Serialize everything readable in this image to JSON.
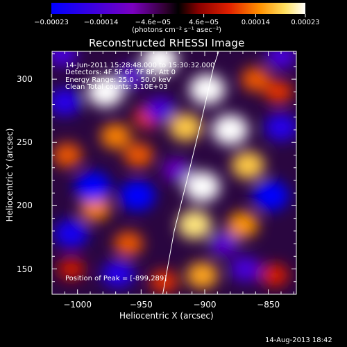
{
  "chart_data": {
    "type": "heatmap",
    "title": "Reconstructed RHESSI Image",
    "xlabel": "Heliocentric X (arcsec)",
    "ylabel": "Heliocentric Y (arcsec)",
    "xlim": [
      -1020,
      -828
    ],
    "ylim": [
      130,
      322
    ],
    "x_ticks": [
      -1000,
      -950,
      -900,
      -850
    ],
    "y_ticks": [
      150,
      200,
      250,
      300
    ],
    "x_tick_labels": [
      "−1000",
      "−950",
      "−900",
      "−850"
    ],
    "y_tick_labels": [
      "150",
      "200",
      "250",
      "300"
    ],
    "colorbar": {
      "range": [
        -0.00023,
        0.00023
      ],
      "ticks": [
        -0.00023,
        -0.00014,
        -4.6e-05,
        4.6e-05,
        0.00014,
        0.00023
      ],
      "tick_labels": [
        "−0.00023",
        "−0.00014",
        "−4.6e−05",
        "4.6e−05",
        "0.00014",
        "0.00023"
      ],
      "units": "(photons cm⁻² s⁻¹ asec⁻²)"
    },
    "annotations": {
      "time": "14-Jun-2011 15:28:48.000 to 15:30:32.000",
      "detectors": "Detectors: 4F 5F 6F 7F 8F, Att 0",
      "energy": "Energy Range: 25.0 - 50.0 keV",
      "method": "Clean    Total counts: 3.10E+03",
      "peak": "Position of Peak = [-899,289]"
    },
    "peak": [
      -899,
      289
    ],
    "limb": [
      [
        -933,
        130
      ],
      [
        -924,
        180
      ],
      [
        -914,
        220
      ],
      [
        -902,
        270
      ],
      [
        -893,
        310
      ],
      [
        -889,
        322
      ]
    ],
    "blobs": [
      {
        "x": -978,
        "y": 290,
        "value": 0.00023
      },
      {
        "x": -970,
        "y": 255,
        "value": 0.00014
      },
      {
        "x": -935,
        "y": 315,
        "value": 0.00023
      },
      {
        "x": -898,
        "y": 292,
        "value": 0.00023
      },
      {
        "x": -915,
        "y": 262,
        "value": 0.00018
      },
      {
        "x": -880,
        "y": 260,
        "value": 0.00023
      },
      {
        "x": -866,
        "y": 232,
        "value": 0.00018
      },
      {
        "x": -902,
        "y": 215,
        "value": 0.00023
      },
      {
        "x": -908,
        "y": 185,
        "value": 0.0002
      },
      {
        "x": -986,
        "y": 198,
        "value": 0.00014
      },
      {
        "x": -1008,
        "y": 240,
        "value": 0.00012
      },
      {
        "x": -952,
        "y": 240,
        "value": 0.00012
      },
      {
        "x": -870,
        "y": 185,
        "value": 0.00015
      },
      {
        "x": -960,
        "y": 170,
        "value": 0.00012
      },
      {
        "x": -902,
        "y": 145,
        "value": 0.00016
      },
      {
        "x": -932,
        "y": 140,
        "value": 0.0001
      },
      {
        "x": -860,
        "y": 300,
        "value": 0.00012
      },
      {
        "x": -842,
        "y": 290,
        "value": 0.0001
      },
      {
        "x": -1005,
        "y": 150,
        "value": 8e-05
      },
      {
        "x": -845,
        "y": 145,
        "value": 9e-05
      },
      {
        "x": -945,
        "y": 270,
        "value": 0.0001
      },
      {
        "x": -988,
        "y": 215,
        "value": -0.00023
      },
      {
        "x": -953,
        "y": 208,
        "value": -0.00023
      },
      {
        "x": -1010,
        "y": 282,
        "value": -0.00018
      },
      {
        "x": -1005,
        "y": 178,
        "value": -0.0002
      },
      {
        "x": -968,
        "y": 146,
        "value": -0.00018
      },
      {
        "x": -848,
        "y": 208,
        "value": -0.00023
      },
      {
        "x": -840,
        "y": 262,
        "value": -0.00018
      },
      {
        "x": -935,
        "y": 276,
        "value": -0.00014
      },
      {
        "x": -840,
        "y": 318,
        "value": -0.00014
      },
      {
        "x": -868,
        "y": 150,
        "value": -0.00014
      },
      {
        "x": -885,
        "y": 170,
        "value": -0.00012
      },
      {
        "x": -1012,
        "y": 320,
        "value": -0.00014
      },
      {
        "x": -922,
        "y": 228,
        "value": -0.0001
      },
      {
        "x": -958,
        "y": 302,
        "value": -0.00012
      }
    ]
  },
  "footer": {
    "date": "14-Aug-2013 18:42"
  }
}
